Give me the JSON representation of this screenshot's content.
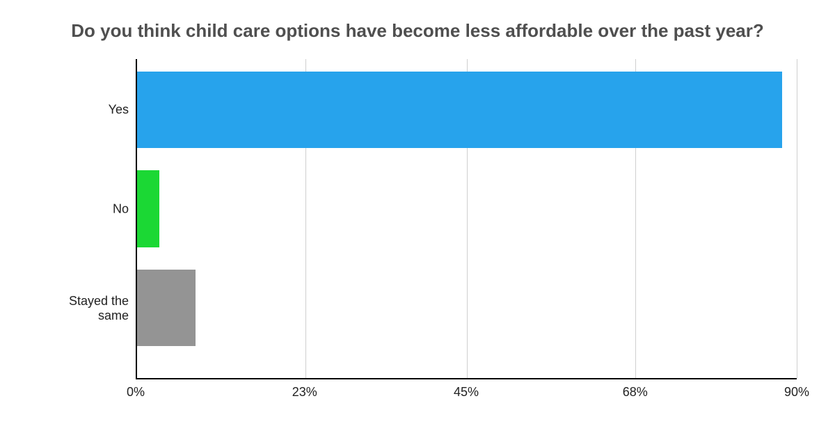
{
  "chart": {
    "type": "bar-horizontal",
    "title": "Do you think child care options have become less affordable over the past year?",
    "title_fontsize": 26,
    "title_color": "#4f4f4f",
    "title_fontweight": 700,
    "background_color": "#ffffff",
    "grid_color": "#cfcfcf",
    "axis_color": "#000000",
    "categories": [
      "Yes",
      "No",
      "Stayed the same"
    ],
    "values": [
      88,
      3,
      8
    ],
    "bar_colors": [
      "#27a3ec",
      "#1bd834",
      "#949494"
    ],
    "xlim": [
      0,
      90
    ],
    "x_ticks": [
      0,
      23,
      45,
      68,
      90
    ],
    "x_tick_labels": [
      "0%",
      "23%",
      "45%",
      "68%",
      "90%"
    ],
    "y_label_fontsize": 18,
    "x_label_fontsize": 18,
    "bar_height_pct": 24,
    "bar_gap_pct": 7,
    "plot_top_pad_pct": 4
  }
}
